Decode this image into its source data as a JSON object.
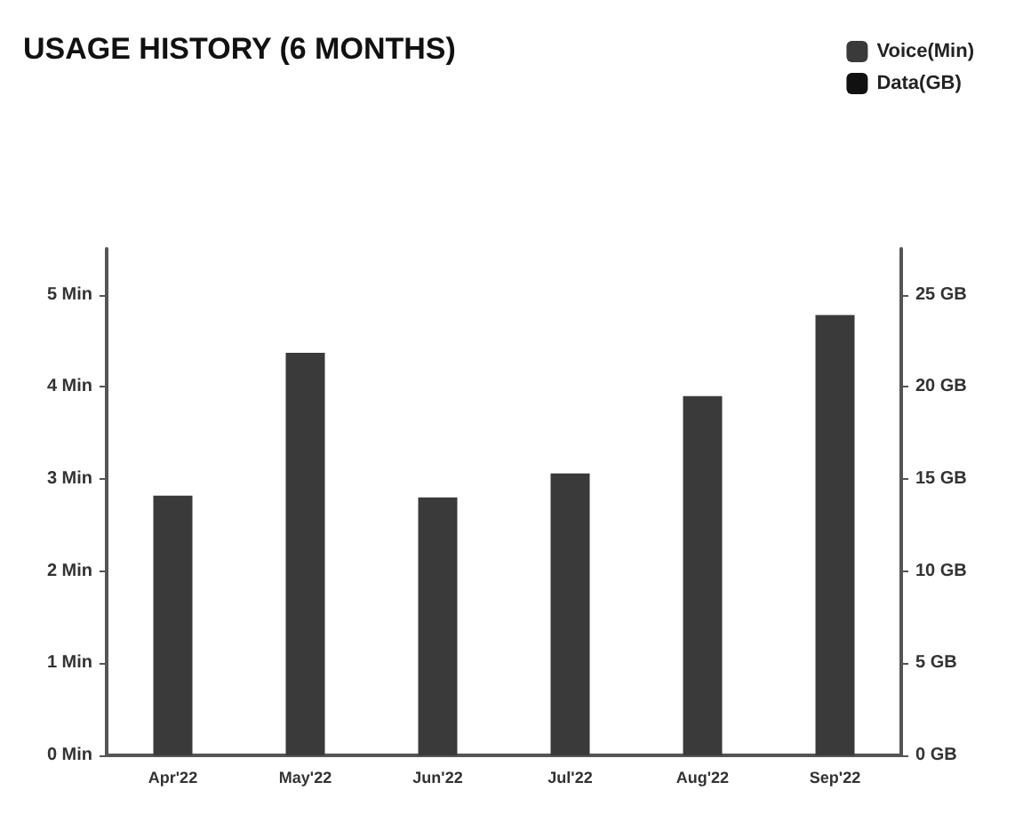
{
  "chart_data": {
    "type": "bar",
    "title": "USAGE HISTORY (6 MONTHS)",
    "categories": [
      "Apr'22",
      "May'22",
      "Jun'22",
      "Jul'22",
      "Aug'22",
      "Sep'22"
    ],
    "series": [
      {
        "name": "Voice(Min)",
        "color": "#3a3a3a",
        "values": [
          2.82,
          4.37,
          2.8,
          3.06,
          3.9,
          4.78
        ]
      },
      {
        "name": "Data(GB)",
        "color": "#111111",
        "values": [
          null,
          null,
          null,
          null,
          null,
          null
        ]
      }
    ],
    "ylim": [
      0,
      5.5
    ],
    "yticks": [
      {
        "value": 0,
        "label": "0 Min"
      },
      {
        "value": 1,
        "label": "1 Min"
      },
      {
        "value": 2,
        "label": "2 Min"
      },
      {
        "value": 3,
        "label": "3 Min"
      },
      {
        "value": 4,
        "label": "4 Min"
      },
      {
        "value": 5,
        "label": "5 Min"
      }
    ],
    "y2lim": [
      0,
      27.5
    ],
    "y2ticks": [
      {
        "value": 0,
        "label": "0 GB"
      },
      {
        "value": 5,
        "label": "5 GB"
      },
      {
        "value": 10,
        "label": "10 GB"
      },
      {
        "value": 15,
        "label": "15 GB"
      },
      {
        "value": 20,
        "label": "20 GB"
      },
      {
        "value": 25,
        "label": "25 GB"
      }
    ],
    "grid": false,
    "legend": "top right"
  }
}
